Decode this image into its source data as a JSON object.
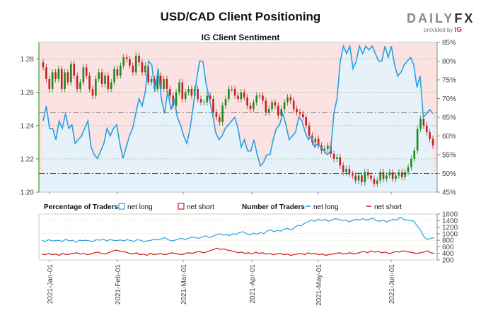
{
  "title": "USD/CAD Client Positioning",
  "subtitle": "IG Client Sentiment",
  "logo": {
    "brand_a": "DAILY",
    "brand_b": "FX",
    "sub": "provided by",
    "ig": "IG"
  },
  "legend": {
    "pct_heading": "Percentage of Traders",
    "net_long": "net long",
    "net_short": "net short",
    "num_heading": "Number of Traders"
  },
  "colors": {
    "long": "#2a9fe0",
    "short": "#cc1a1a",
    "up": "#1e8a1e",
    "down": "#c82020",
    "long_bg": "#e3f2fc",
    "short_bg": "#fbe3e3",
    "axis": "#4a9a2a"
  },
  "chart_data": [
    {
      "type": "candlestick+line",
      "title": "IG Client Sentiment",
      "y_left": {
        "ticks": [
          1.2,
          1.22,
          1.24,
          1.26,
          1.28
        ],
        "range": [
          1.2,
          1.29
        ]
      },
      "y_right": {
        "ticks": [
          "45%",
          "50%",
          "55%",
          "60%",
          "65%",
          "70%",
          "75%",
          "80%",
          "85%"
        ],
        "range": [
          45,
          85
        ]
      },
      "reference_lines_pct": [
        50,
        66.2
      ],
      "x_ticks": [
        "2021-Jan-01",
        "2021-Feb-01",
        "2021-Mar-01",
        "2021-Apr-01",
        "2021-May-01",
        "2021-Jun-01"
      ],
      "price_close": [
        1.275,
        1.268,
        1.262,
        1.272,
        1.268,
        1.274,
        1.262,
        1.272,
        1.266,
        1.277,
        1.27,
        1.262,
        1.266,
        1.275,
        1.27,
        1.262,
        1.258,
        1.268,
        1.272,
        1.265,
        1.27,
        1.262,
        1.266,
        1.274,
        1.27,
        1.276,
        1.281,
        1.28,
        1.276,
        1.272,
        1.282,
        1.278,
        1.272,
        1.276,
        1.266,
        1.268,
        1.262,
        1.27,
        1.262,
        1.268,
        1.262,
        1.258,
        1.252,
        1.26,
        1.266,
        1.256,
        1.26,
        1.262,
        1.258,
        1.262,
        1.256,
        1.254,
        1.254,
        1.258,
        1.256,
        1.248,
        1.245,
        1.242,
        1.252,
        1.256,
        1.262,
        1.262,
        1.258,
        1.256,
        1.26,
        1.257,
        1.252,
        1.25,
        1.254,
        1.258,
        1.258,
        1.255,
        1.248,
        1.25,
        1.254,
        1.252,
        1.246,
        1.25,
        1.254,
        1.257,
        1.255,
        1.25,
        1.248,
        1.247,
        1.245,
        1.24,
        1.234,
        1.23,
        1.232,
        1.228,
        1.225,
        1.226,
        1.228,
        1.223,
        1.22,
        1.221,
        1.216,
        1.212,
        1.214,
        1.211,
        1.21,
        1.207,
        1.21,
        1.206,
        1.212,
        1.21,
        1.208,
        1.205,
        1.207,
        1.212,
        1.208,
        1.21,
        1.212,
        1.208,
        1.21,
        1.212,
        1.209,
        1.212,
        1.215,
        1.22,
        1.225,
        1.238,
        1.244,
        1.24,
        1.236,
        1.232,
        1.228
      ],
      "pct_long": [
        64,
        68,
        62,
        62,
        59,
        64,
        62,
        66,
        62,
        63,
        58,
        59,
        60,
        62,
        64,
        57,
        55,
        54,
        56,
        58,
        62,
        60,
        62,
        63,
        58,
        54,
        57,
        60,
        62,
        66,
        70,
        68,
        72,
        80,
        79,
        72,
        78,
        70,
        66,
        72,
        67,
        70,
        65,
        63,
        60,
        58,
        62,
        68,
        75,
        80,
        80,
        74,
        70,
        66,
        61,
        59,
        60,
        62,
        63,
        64,
        65,
        62,
        57,
        59,
        56,
        56,
        59,
        55,
        52,
        53,
        55,
        55,
        59,
        62,
        63,
        66,
        63,
        59,
        60,
        61,
        65,
        64,
        61,
        59,
        60,
        57,
        58,
        57,
        56,
        55,
        56,
        66,
        70,
        80,
        84,
        82,
        84,
        78,
        80,
        84,
        82,
        84,
        83,
        84,
        82,
        80,
        80,
        84,
        81,
        84,
        79,
        76,
        77,
        79,
        80,
        81,
        79,
        73,
        76,
        65,
        66,
        67,
        66
      ],
      "num_long": [
        800,
        760,
        820,
        780,
        790,
        800,
        760,
        830,
        780,
        800,
        740,
        800,
        790,
        800,
        780,
        760,
        820,
        800,
        840,
        780,
        820,
        800,
        790,
        810,
        780,
        820,
        790,
        760,
        820,
        800,
        760,
        780,
        800,
        830,
        820,
        840,
        880,
        820,
        780,
        800,
        840,
        860,
        820,
        860,
        900,
        880,
        860,
        900,
        940,
        880,
        920,
        960,
        1000,
        960,
        980,
        940,
        1000,
        980,
        1040,
        1060,
        1000,
        960,
        1020,
        980,
        1040,
        1000,
        1080,
        1120,
        1060,
        1100,
        1080,
        1140,
        1160,
        1120,
        1180,
        1260,
        1240,
        1320,
        1360,
        1420,
        1380,
        1440,
        1400,
        1440,
        1380,
        1420,
        1460,
        1440,
        1400,
        1420,
        1360,
        1400,
        1440,
        1420,
        1460,
        1420,
        1440,
        1480,
        1400,
        1380,
        1420,
        1360,
        1400,
        1440,
        1420,
        1500,
        1440,
        1420,
        1400,
        1380,
        1240,
        1100,
        900,
        820,
        860,
        880
      ],
      "num_short": [
        380,
        360,
        400,
        360,
        380,
        340,
        400,
        360,
        380,
        400,
        420,
        380,
        400,
        360,
        380,
        420,
        440,
        400,
        380,
        420,
        460,
        500,
        480,
        460,
        440,
        400,
        380,
        420,
        360,
        380,
        340,
        400,
        360,
        380,
        400,
        360,
        380,
        420,
        400,
        380,
        360,
        400,
        420,
        400,
        440,
        460,
        420,
        440,
        480,
        520,
        560,
        520,
        540,
        500,
        480,
        460,
        420,
        440,
        400,
        420,
        380,
        440,
        400,
        420,
        380,
        400,
        360,
        380,
        400,
        360,
        380,
        340,
        360,
        380,
        400,
        360,
        420,
        380,
        400,
        360,
        380,
        340,
        360,
        380,
        400,
        420,
        380,
        400,
        420,
        380,
        400,
        440,
        460,
        420,
        480,
        440,
        460,
        420,
        440,
        400,
        420,
        460,
        440,
        480,
        460,
        440,
        420,
        400,
        420,
        440,
        480,
        420,
        400
      ],
      "y_bottom_ticks": [
        200,
        400,
        600,
        800,
        1000,
        1200,
        1400,
        1600
      ]
    }
  ]
}
